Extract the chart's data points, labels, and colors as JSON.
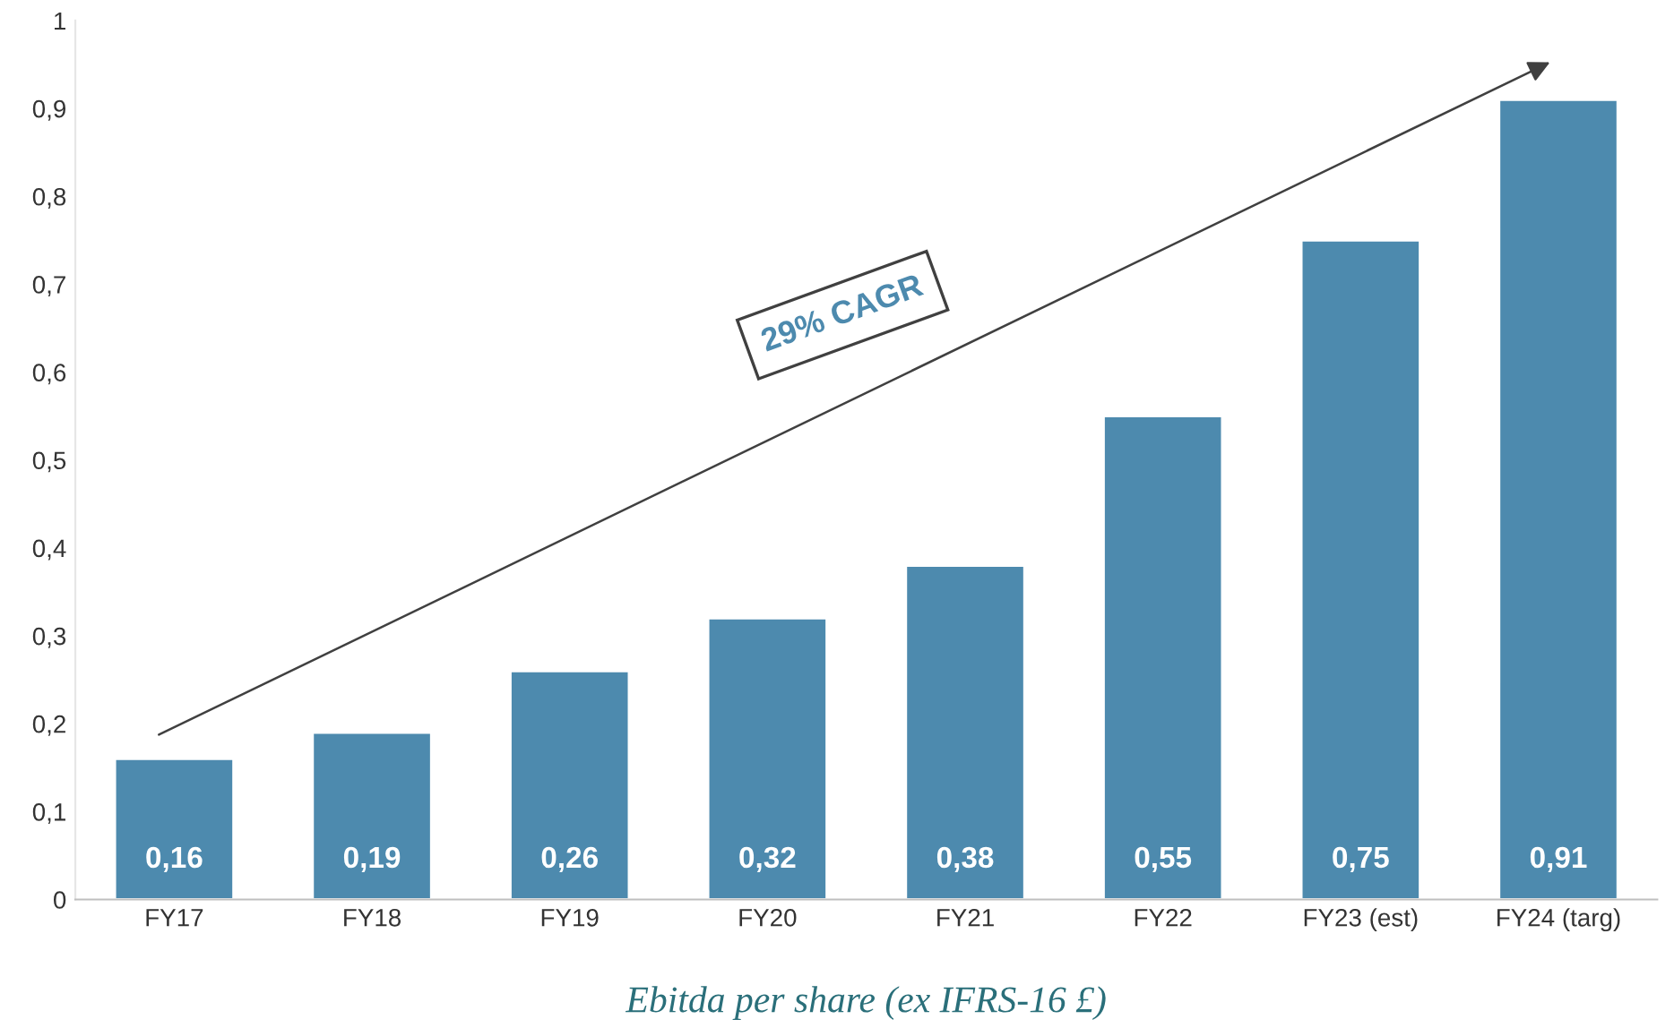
{
  "chart_data": {
    "type": "bar",
    "xlabel": "Ebitda per share (ex IFRS-16 £)",
    "categories": [
      "FY17",
      "FY18",
      "FY19",
      "FY20",
      "FY21",
      "FY22",
      "FY23 (est)",
      "FY24 (targ)"
    ],
    "values": [
      0.16,
      0.19,
      0.26,
      0.32,
      0.38,
      0.55,
      0.75,
      0.91
    ],
    "value_labels": [
      "0,16",
      "0,19",
      "0,26",
      "0,32",
      "0,38",
      "0,55",
      "0,75",
      "0,91"
    ],
    "color": "#4d8aae",
    "ylim": [
      0,
      1
    ],
    "yticks": [
      0,
      {
        "value": 0.1,
        "label": "0,1"
      },
      {
        "value": 0.2,
        "label": "0,2"
      },
      {
        "value": 0.3,
        "label": "0,3"
      },
      {
        "value": 0.4,
        "label": "0,4"
      },
      {
        "value": 0.5,
        "label": "0,5"
      },
      {
        "value": 0.6,
        "label": "0,6"
      },
      {
        "value": 0.7,
        "label": "0,7"
      },
      {
        "value": 0.8,
        "label": "0,8"
      },
      {
        "value": 0.9,
        "label": "0,9"
      },
      1
    ],
    "annotations": [
      "29% CAGR"
    ],
    "grid": false,
    "legend": false
  }
}
